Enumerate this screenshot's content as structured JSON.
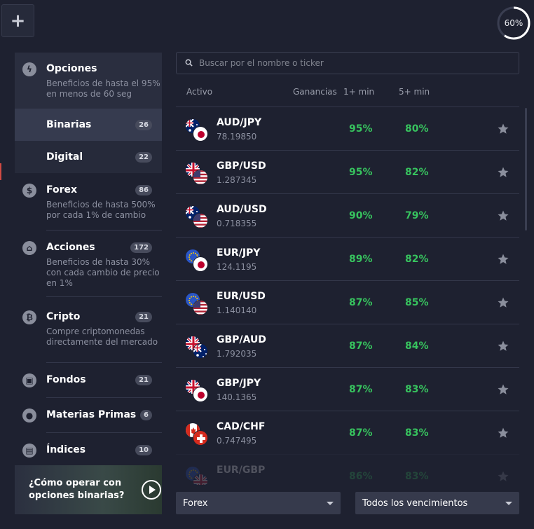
{
  "progress": {
    "value": 60,
    "label": "60%"
  },
  "categories": {
    "opciones": {
      "title": "Opciones",
      "desc": "Beneficios de hasta el 95% en menos de 60 seg"
    },
    "binarias": {
      "title": "Binarias",
      "count": "26"
    },
    "digital": {
      "title": "Digital",
      "count": "22"
    },
    "forex": {
      "title": "Forex",
      "count": "86",
      "desc": "Beneficios de hasta 500% por cada 1% de cambio"
    },
    "acciones": {
      "title": "Acciones",
      "count": "172",
      "desc": "Beneficios de hasta 30% con cada cambio de precio en 1%"
    },
    "cripto": {
      "title": "Cripto",
      "count": "21",
      "desc": "Compre criptomonedas directamente del mercado"
    },
    "fondos": {
      "title": "Fondos",
      "count": "21"
    },
    "materias": {
      "title": "Materias Primas",
      "count": "6"
    },
    "indices": {
      "title": "Índices",
      "count": "10"
    }
  },
  "video": {
    "text": "¿Cómo operar con opciones binarias?"
  },
  "search": {
    "placeholder": "Buscar por el nombre o ticker"
  },
  "columns": {
    "activo": "Activo",
    "ganancias": "Ganancias",
    "min1": "1+ min",
    "min5": "5+ min"
  },
  "assets": [
    {
      "pair": "AUD/JPY",
      "price": "78.19850",
      "p1": "95%",
      "p5": "80%",
      "flag1": "au",
      "flag2": "jp"
    },
    {
      "pair": "GBP/USD",
      "price": "1.287345",
      "p1": "95%",
      "p5": "82%",
      "flag1": "gb",
      "flag2": "us"
    },
    {
      "pair": "AUD/USD",
      "price": "0.718355",
      "p1": "90%",
      "p5": "79%",
      "flag1": "au",
      "flag2": "us"
    },
    {
      "pair": "EUR/JPY",
      "price": "124.1195",
      "p1": "89%",
      "p5": "82%",
      "flag1": "eu",
      "flag2": "jp"
    },
    {
      "pair": "EUR/USD",
      "price": "1.140140",
      "p1": "87%",
      "p5": "85%",
      "flag1": "eu",
      "flag2": "us"
    },
    {
      "pair": "GBP/AUD",
      "price": "1.792035",
      "p1": "87%",
      "p5": "84%",
      "flag1": "gb",
      "flag2": "au"
    },
    {
      "pair": "GBP/JPY",
      "price": "140.1365",
      "p1": "87%",
      "p5": "83%",
      "flag1": "gb",
      "flag2": "jp"
    },
    {
      "pair": "CAD/CHF",
      "price": "0.747495",
      "p1": "87%",
      "p5": "83%",
      "flag1": "ca",
      "flag2": "ch"
    },
    {
      "pair": "EUR/GBP",
      "price": "",
      "p1": "86%",
      "p5": "83%",
      "flag1": "eu",
      "flag2": "gb"
    }
  ],
  "filters": {
    "market": "Forex",
    "expiry": "Todos los vencimientos"
  },
  "colors": {
    "bg": "#1e2130",
    "green": "#37c25e",
    "panel": "#2a2e3f"
  }
}
